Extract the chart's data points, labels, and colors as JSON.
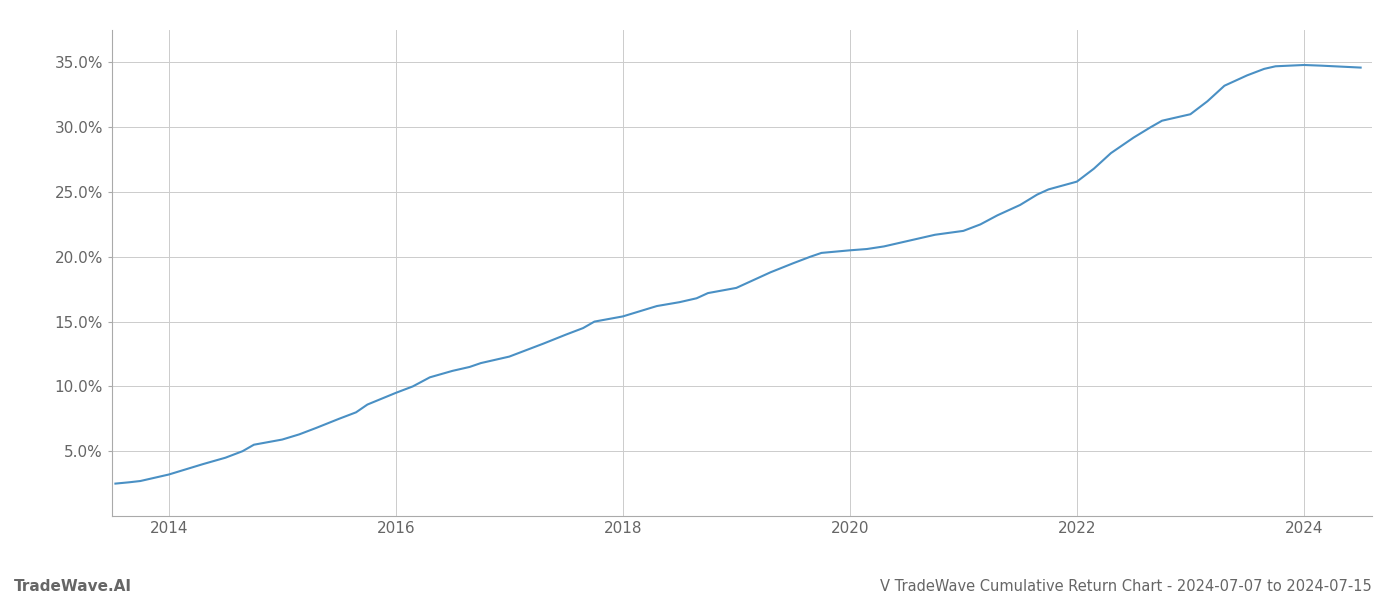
{
  "title": "V TradeWave Cumulative Return Chart - 2024-07-07 to 2024-07-15",
  "watermark": "TradeWave.AI",
  "line_color": "#4a90c4",
  "line_width": 1.5,
  "background_color": "#ffffff",
  "grid_color": "#cccccc",
  "x_years": [
    2013.53,
    2013.65,
    2013.75,
    2013.85,
    2014.0,
    2014.15,
    2014.3,
    2014.5,
    2014.65,
    2014.75,
    2015.0,
    2015.15,
    2015.3,
    2015.5,
    2015.65,
    2015.75,
    2016.0,
    2016.15,
    2016.3,
    2016.5,
    2016.65,
    2016.75,
    2017.0,
    2017.15,
    2017.3,
    2017.5,
    2017.65,
    2017.75,
    2018.0,
    2018.15,
    2018.3,
    2018.5,
    2018.65,
    2018.75,
    2019.0,
    2019.15,
    2019.3,
    2019.5,
    2019.65,
    2019.75,
    2020.0,
    2020.15,
    2020.3,
    2020.5,
    2020.65,
    2020.75,
    2021.0,
    2021.15,
    2021.3,
    2021.5,
    2021.65,
    2021.75,
    2022.0,
    2022.15,
    2022.3,
    2022.5,
    2022.65,
    2022.75,
    2023.0,
    2023.15,
    2023.3,
    2023.5,
    2023.65,
    2023.75,
    2024.0,
    2024.15,
    2024.5
  ],
  "y_values": [
    2.5,
    2.6,
    2.7,
    2.9,
    3.2,
    3.6,
    4.0,
    4.5,
    5.0,
    5.5,
    5.9,
    6.3,
    6.8,
    7.5,
    8.0,
    8.6,
    9.5,
    10.0,
    10.7,
    11.2,
    11.5,
    11.8,
    12.3,
    12.8,
    13.3,
    14.0,
    14.5,
    15.0,
    15.4,
    15.8,
    16.2,
    16.5,
    16.8,
    17.2,
    17.6,
    18.2,
    18.8,
    19.5,
    20.0,
    20.3,
    20.5,
    20.6,
    20.8,
    21.2,
    21.5,
    21.7,
    22.0,
    22.5,
    23.2,
    24.0,
    24.8,
    25.2,
    25.8,
    26.8,
    28.0,
    29.2,
    30.0,
    30.5,
    31.0,
    32.0,
    33.2,
    34.0,
    34.5,
    34.7,
    34.8,
    34.75,
    34.6
  ],
  "xlim": [
    2013.5,
    2024.6
  ],
  "ylim": [
    0,
    37.5
  ],
  "xtick_years": [
    2014,
    2016,
    2018,
    2020,
    2022,
    2024
  ],
  "ytick_values": [
    5.0,
    10.0,
    15.0,
    20.0,
    25.0,
    30.0,
    35.0
  ],
  "ytick_labels": [
    "5.0%",
    "10.0%",
    "15.0%",
    "20.0%",
    "25.0%",
    "30.0%",
    "35.0%"
  ],
  "tick_color": "#666666",
  "tick_fontsize": 11,
  "title_fontsize": 10.5,
  "watermark_fontsize": 11
}
